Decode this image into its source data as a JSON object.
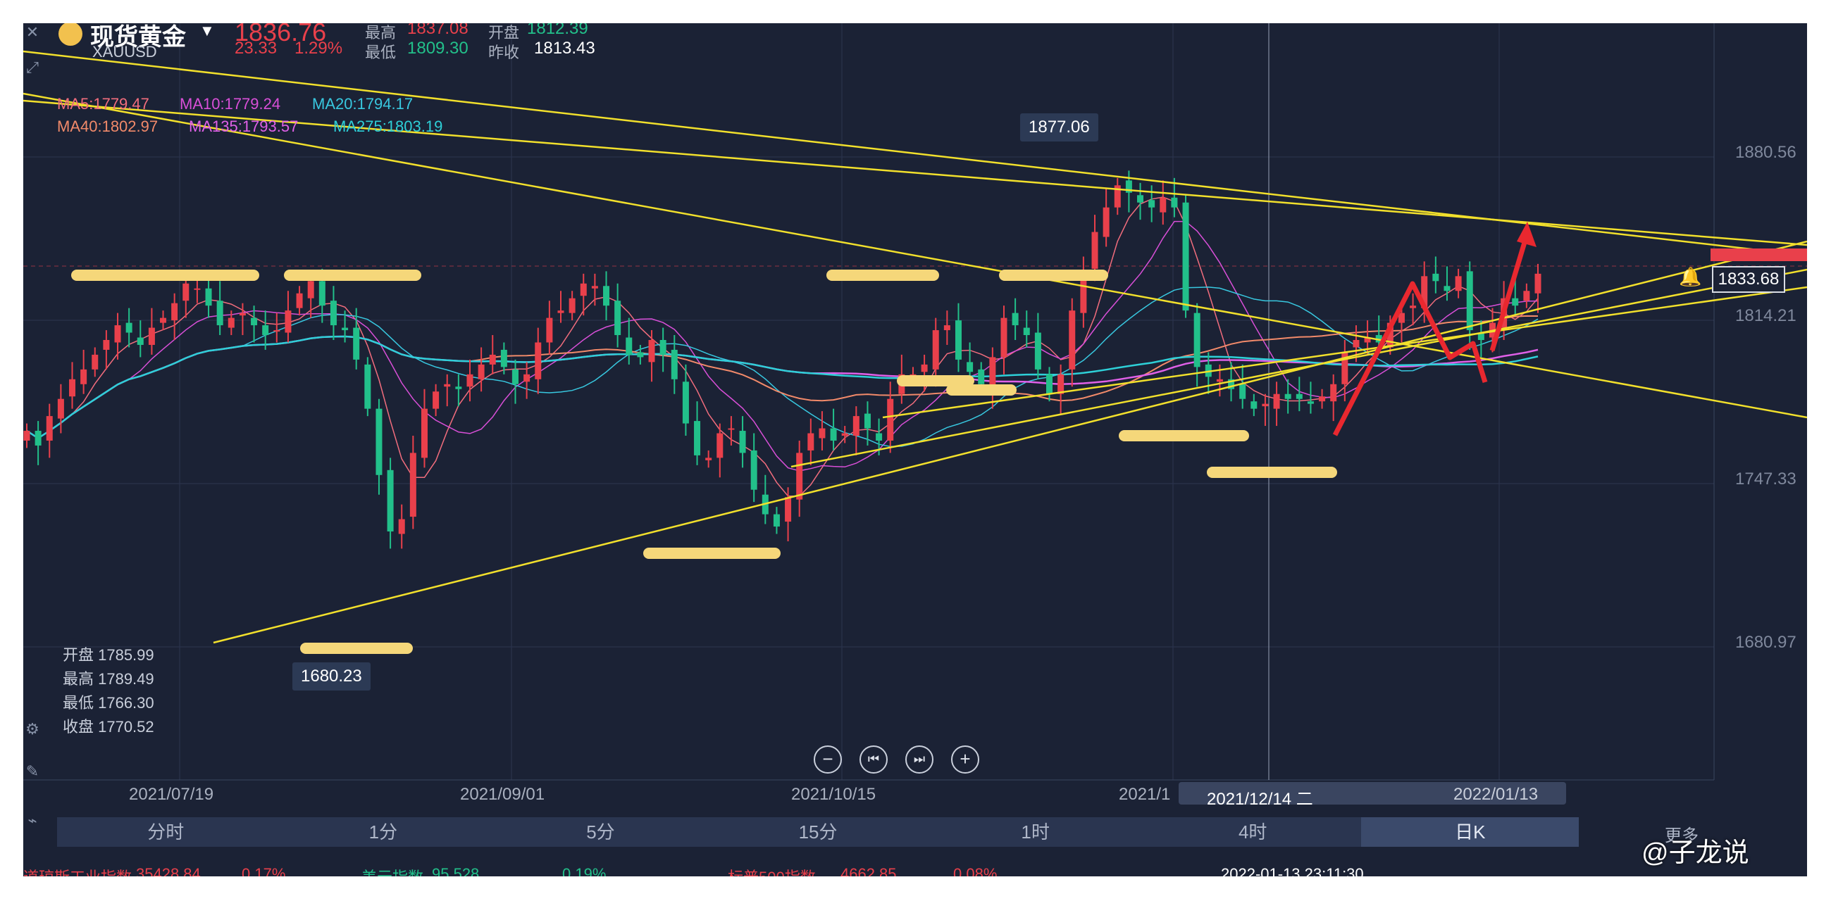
{
  "header": {
    "name": "现货黄金",
    "code": "XAUUSD",
    "price": "1836.76",
    "change": "23.33",
    "change_pct": "1.29%",
    "high_label": "最高",
    "high_value": "1837.08",
    "open_label": "开盘",
    "open_value": "1812.39",
    "low_label": "最低",
    "low_value": "1809.30",
    "prev_close_label": "昨收",
    "prev_close_value": "1813.43"
  },
  "ma": {
    "ma5": "MA5:1779.47",
    "ma10": "MA10:1779.24",
    "ma20": "MA20:1794.17",
    "ma40": "MA40:1802.97",
    "ma135": "MA135:1793.57",
    "ma275": "MA275:1803.19"
  },
  "crosshair_ohlc": {
    "open": "开盘 1785.99",
    "high": "最高 1789.49",
    "low": "最低 1766.30",
    "close": "收盘 1770.52"
  },
  "y_axis": [
    "1880.56",
    "1814.21",
    "1747.33",
    "1680.97"
  ],
  "x_axis": [
    "2021/07/19",
    "2021/09/01",
    "2021/10/15",
    "2021/1"
  ],
  "crosshair_date": "2021/12/14 二",
  "crosshair_date_tail": "2022/01/13",
  "current_price_tag": "1833.68",
  "callouts": {
    "high": "1877.06",
    "low": "1680.23"
  },
  "tabs": [
    "分时",
    "1分",
    "5分",
    "15分",
    "1时",
    "4时",
    "日K"
  ],
  "active_tab": "日K",
  "more_label": "更多",
  "bottom_ticker": {
    "dow": "道琼斯工业指数",
    "dow_val": "35428.84",
    "dow_pct": "0.17%",
    "usd": "美元指数",
    "usd_val": "95.528",
    "usd_pct": "0.19%",
    "sp": "标普500指数",
    "sp_val": "4662.85",
    "sp_pct": "0.08%",
    "time": "2022-01-13 23:11:30"
  },
  "watermark": "@子龙说",
  "colors": {
    "background": "#1b2235",
    "up": "#e9404b",
    "down": "#22c08a",
    "trendline": "#f2e02c",
    "highlight": "#f5d77a",
    "ma5": "#f26d7d",
    "ma10": "#d94fd8",
    "ma20": "#38c8e0",
    "ma40": "#f28a6a",
    "ma135": "#e060e8",
    "ma275": "#2ed0d8"
  },
  "chart_data": {
    "type": "candlestick",
    "ylim": [
      1650,
      1905
    ],
    "y_ticks": [
      1880.56,
      1814.21,
      1747.33,
      1680.97
    ],
    "x_tick_labels": [
      "2021/07/19",
      "2021/09/01",
      "2021/10/15",
      "2021/1"
    ],
    "annotated_high": 1877.06,
    "annotated_low": 1680.23,
    "last_price": 1833.68,
    "candles_close": [
      1769,
      1763,
      1775,
      1782,
      1790,
      1794,
      1800,
      1806,
      1812,
      1809,
      1804,
      1811,
      1815,
      1821,
      1829,
      1827,
      1820,
      1812,
      1815,
      1817,
      1812,
      1808,
      1810,
      1818,
      1825,
      1830,
      1820,
      1812,
      1810,
      1798,
      1778,
      1751,
      1728,
      1733,
      1760,
      1778,
      1785,
      1788,
      1786,
      1792,
      1796,
      1800,
      1795,
      1788,
      1792,
      1805,
      1815,
      1818,
      1823,
      1829,
      1828,
      1820,
      1808,
      1800,
      1799,
      1806,
      1800,
      1790,
      1772,
      1759,
      1758,
      1768,
      1770,
      1760,
      1745,
      1735,
      1730,
      1742,
      1760,
      1768,
      1770,
      1765,
      1768,
      1775,
      1770,
      1765,
      1782,
      1792,
      1792,
      1796,
      1810,
      1812,
      1798,
      1793,
      1788,
      1799,
      1815,
      1812,
      1808,
      1794,
      1784,
      1792,
      1818,
      1834,
      1850,
      1860,
      1869,
      1866,
      1862,
      1860,
      1864,
      1860,
      1818,
      1795,
      1791,
      1790,
      1786,
      1782,
      1778,
      1780,
      1784,
      1782,
      1782,
      1780,
      1783,
      1788,
      1801,
      1806,
      1807,
      1805,
      1813,
      1817,
      1820,
      1832,
      1830,
      1826,
      1832,
      1810,
      1806,
      1813,
      1823,
      1820,
      1826,
      1833
    ]
  }
}
